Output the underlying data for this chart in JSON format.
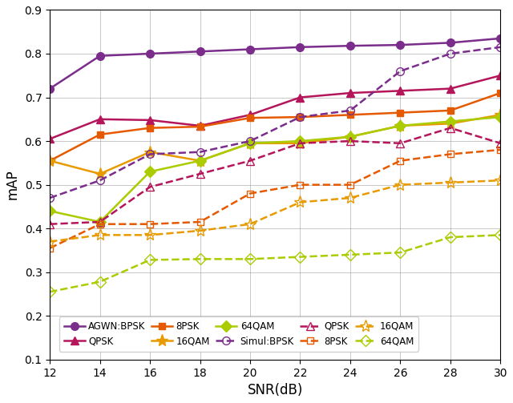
{
  "snr": [
    12,
    14,
    16,
    18,
    20,
    22,
    24,
    26,
    28,
    30
  ],
  "series": {
    "AGWN_BPSK": [
      0.72,
      0.795,
      0.8,
      0.805,
      0.81,
      0.815,
      0.818,
      0.82,
      0.825,
      0.835
    ],
    "AGWN_QPSK": [
      0.605,
      0.65,
      0.648,
      0.635,
      0.66,
      0.7,
      0.71,
      0.715,
      0.72,
      0.75
    ],
    "AGWN_8PSK": [
      0.555,
      0.615,
      0.63,
      0.633,
      0.653,
      0.655,
      0.66,
      0.665,
      0.67,
      0.71
    ],
    "AGWN_16QAM": [
      0.555,
      0.525,
      0.575,
      0.555,
      0.595,
      0.595,
      0.61,
      0.635,
      0.64,
      0.66
    ],
    "AGWN_64QAM": [
      0.44,
      0.415,
      0.53,
      0.555,
      0.595,
      0.6,
      0.61,
      0.635,
      0.645,
      0.655
    ],
    "Simul_BPSK": [
      0.47,
      0.51,
      0.57,
      0.575,
      0.6,
      0.655,
      0.67,
      0.76,
      0.8,
      0.815
    ],
    "Simul_QPSK": [
      0.41,
      0.415,
      0.495,
      0.525,
      0.555,
      0.595,
      0.6,
      0.595,
      0.63,
      0.595
    ],
    "Simul_8PSK": [
      0.355,
      0.41,
      0.41,
      0.415,
      0.48,
      0.5,
      0.5,
      0.555,
      0.57,
      0.58
    ],
    "Simul_16QAM": [
      0.37,
      0.385,
      0.385,
      0.395,
      0.41,
      0.46,
      0.47,
      0.5,
      0.505,
      0.51
    ],
    "Simul_64QAM": [
      0.255,
      0.278,
      0.328,
      0.33,
      0.33,
      0.335,
      0.34,
      0.345,
      0.38,
      0.385
    ]
  },
  "colors": {
    "BPSK": "#7B2D8B",
    "QPSK": "#B5155A",
    "8PSK": "#E55A00",
    "16QAM": "#E89B00",
    "64QAM": "#AACC00"
  },
  "xlabel": "SNR(dB)",
  "ylabel": "mAP",
  "ylim": [
    0.1,
    0.9
  ],
  "xlim": [
    12,
    30
  ],
  "yticks": [
    0.1,
    0.2,
    0.3,
    0.4,
    0.5,
    0.6,
    0.7,
    0.8,
    0.9
  ]
}
